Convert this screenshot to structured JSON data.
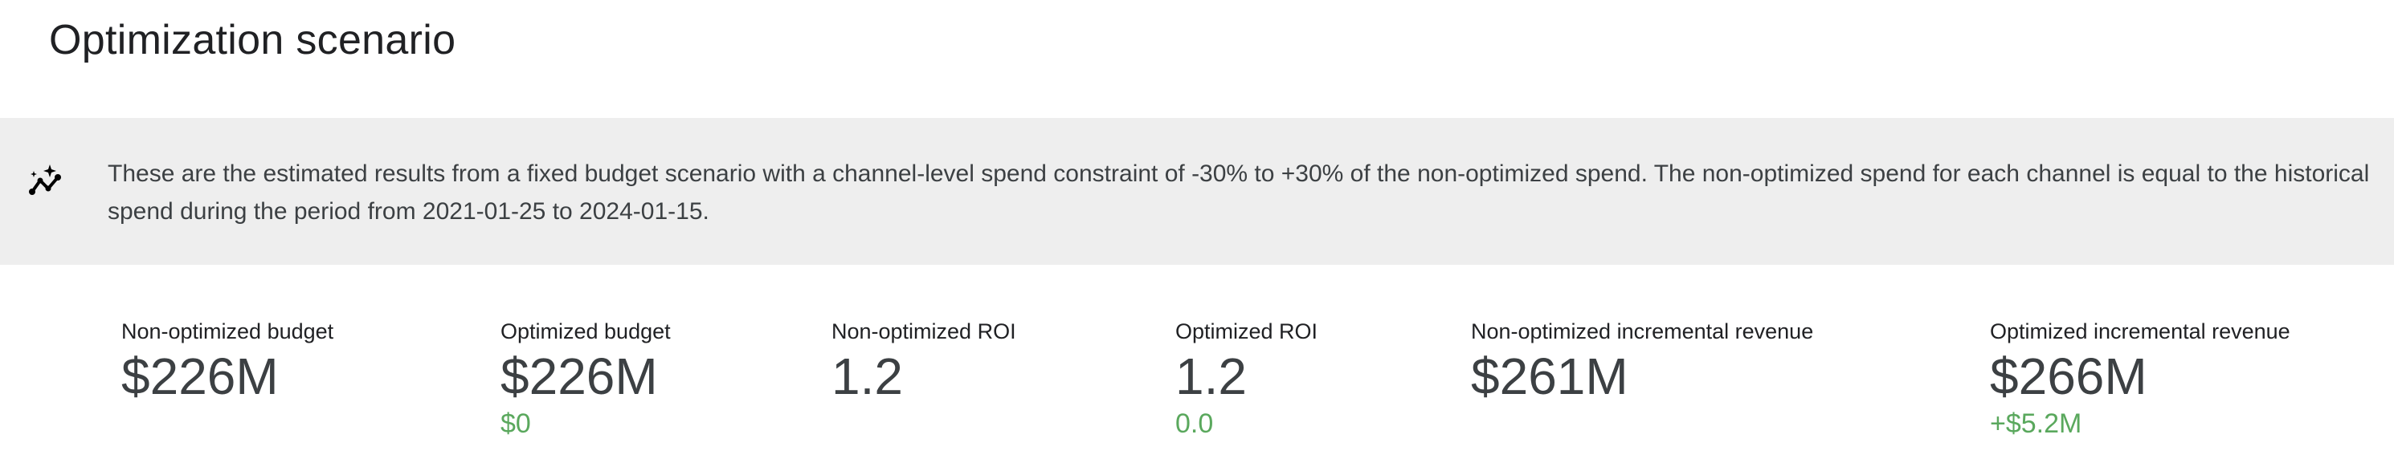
{
  "header": {
    "title": "Optimization scenario"
  },
  "banner": {
    "icon": "insights-sparkle-icon",
    "text": "These are the estimated results from a fixed budget scenario with a channel-level spend constraint of -30% to +30% of the non-optimized spend. The non-optimized spend for each channel is equal to the historical spend during the period from 2021-01-25 to 2024-01-15."
  },
  "colors": {
    "delta_positive": "#5aa85d",
    "banner_bg": "#eeeeee"
  },
  "metrics": [
    {
      "label": "Non-optimized budget",
      "value": "$226M",
      "delta": null
    },
    {
      "label": "Optimized budget",
      "value": "$226M",
      "delta": "$0"
    },
    {
      "label": "Non-optimized ROI",
      "value": "1.2",
      "delta": null
    },
    {
      "label": "Optimized ROI",
      "value": "1.2",
      "delta": "0.0"
    },
    {
      "label": "Non-optimized incremental revenue",
      "value": "$261M",
      "delta": null
    },
    {
      "label": "Optimized incremental revenue",
      "value": "$266M",
      "delta": "+$5.2M"
    }
  ]
}
